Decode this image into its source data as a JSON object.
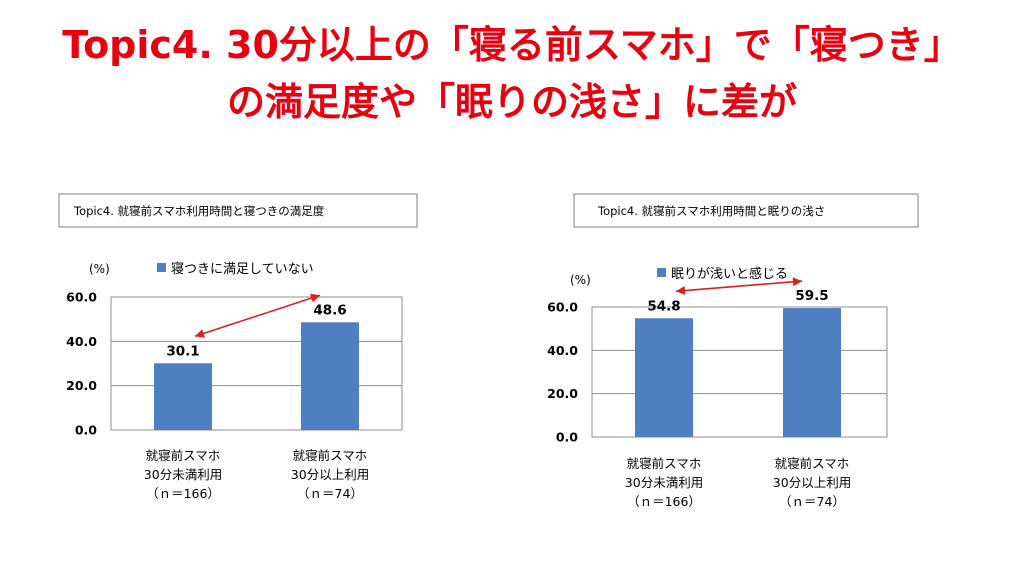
{
  "headline": {
    "line1": "Topic4.  30分以上の「寝る前スマホ」で「寝つき」",
    "line2": "の満足度や「眠りの浅さ」に差が"
  },
  "colors": {
    "headline": "#e8000f",
    "bar": "#4f7fc3",
    "arrow": "#d9211e"
  },
  "chart_data": [
    {
      "type": "bar",
      "title": "Topic4. 就寝前スマホ利用時間と寝つきの満足度",
      "ylabel": "(%)",
      "legend": "寝つきに満足していない",
      "ylim": [
        0,
        60
      ],
      "yticks": [
        "60.0",
        "40.0",
        "20.0",
        "0.0"
      ],
      "ytick_values": [
        60,
        40,
        20,
        0
      ],
      "categories": [
        [
          "就寝前スマホ",
          "30分未満利用",
          "（ｎ＝166）"
        ],
        [
          "就寝前スマホ",
          "30分以上利用",
          "（ｎ＝74）"
        ]
      ],
      "values": [
        30.1,
        48.6
      ],
      "value_labels": [
        "30.1",
        "48.6"
      ],
      "annotation": "double-headed arrow linking the two bars"
    },
    {
      "type": "bar",
      "title": "Topic4. 就寝前スマホ利用時間と眠りの浅さ",
      "ylabel": "(%)",
      "legend": "眠りが浅いと感じる",
      "ylim": [
        0,
        60
      ],
      "yticks": [
        "60.0",
        "40.0",
        "20.0",
        "0.0"
      ],
      "ytick_values": [
        60,
        40,
        20,
        0
      ],
      "categories": [
        [
          "就寝前スマホ",
          "30分未満利用",
          "（ｎ＝166）"
        ],
        [
          "就寝前スマホ",
          "30分以上利用",
          "（ｎ＝74）"
        ]
      ],
      "values": [
        54.8,
        59.5
      ],
      "value_labels": [
        "54.8",
        "59.5"
      ],
      "annotation": "double-headed arrow linking the two bars"
    }
  ]
}
